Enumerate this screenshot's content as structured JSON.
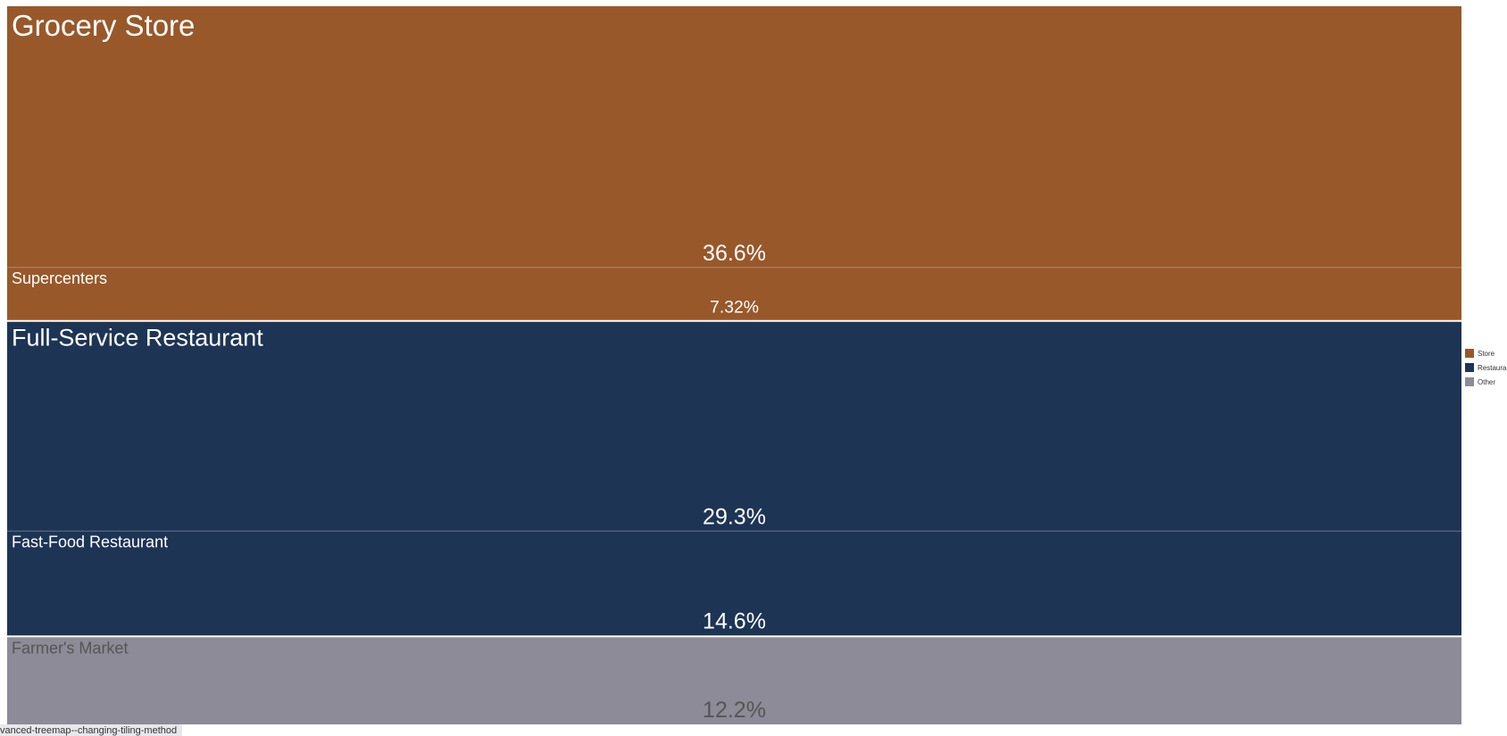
{
  "chart_data": {
    "type": "treemap",
    "tiling": "slice",
    "groups": [
      {
        "name": "Store",
        "color": "#98582a",
        "items": [
          {
            "name": "Grocery Store",
            "value": 36.6,
            "label": "36.6%"
          },
          {
            "name": "Supercenters",
            "value": 7.32,
            "label": "7.32%"
          }
        ]
      },
      {
        "name": "Restaura",
        "color": "#1d3455",
        "items": [
          {
            "name": "Full-Service Restaurant",
            "value": 29.3,
            "label": "29.3%"
          },
          {
            "name": "Fast-Food Restaurant",
            "value": 14.6,
            "label": "14.6%"
          }
        ]
      },
      {
        "name": "Other",
        "color": "#8c8b97",
        "text_color": "#555555",
        "items": [
          {
            "name": "Farmer's Market",
            "value": 12.2,
            "label": "12.2%"
          }
        ]
      }
    ],
    "legend_position": "right"
  },
  "status_bar": {
    "text": "vanced-treemap--changing-tiling-method"
  }
}
